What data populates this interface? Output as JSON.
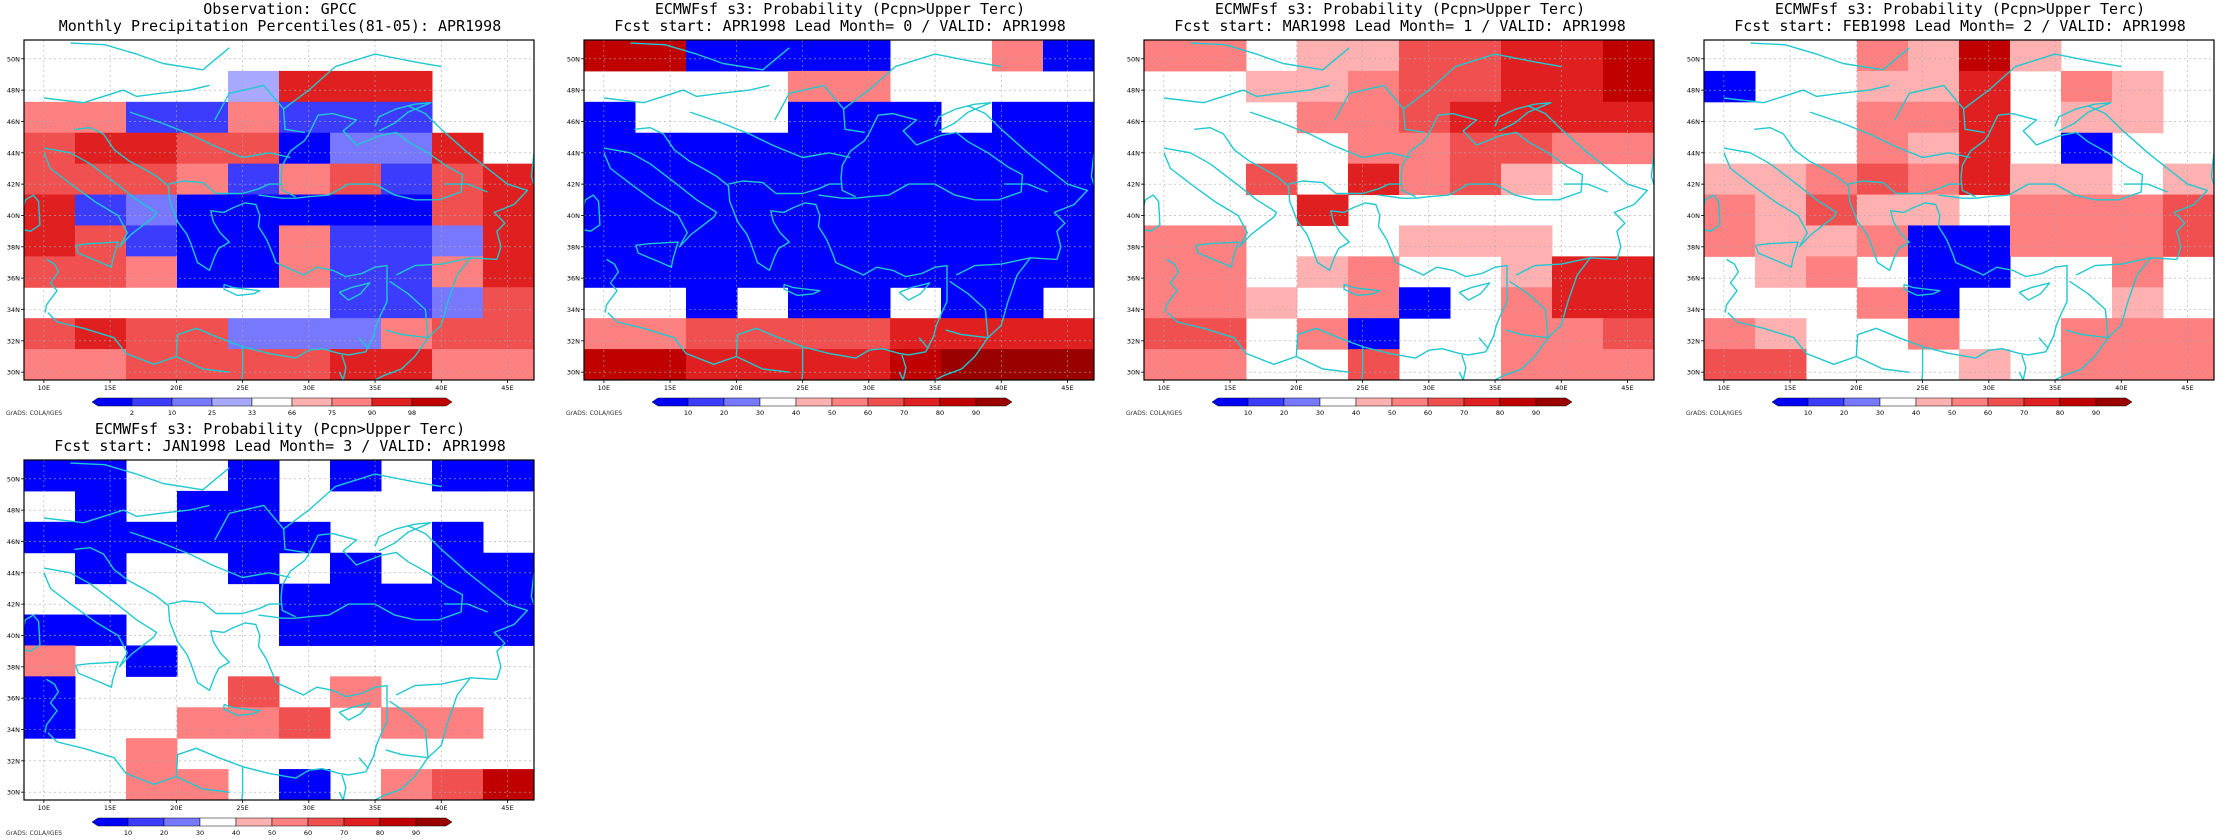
{
  "colors": {
    "blue_ramp": [
      "#0000ff",
      "#3c3cff",
      "#7878ff",
      "#a8a8ff"
    ],
    "red_ramp": [
      "#ffb0b0",
      "#ff8080",
      "#f05050",
      "#e02020",
      "#c00000",
      "#9b0000"
    ],
    "coast": "#20c8d0",
    "grid": "#aaaaaa"
  },
  "map_axes": {
    "lat_labels": [
      "30N",
      "32N",
      "34N",
      "36N",
      "38N",
      "40N",
      "42N",
      "44N",
      "46N",
      "48N",
      "50N"
    ],
    "lon_labels": [
      "10E",
      "15E",
      "20E",
      "25E",
      "30E",
      "35E",
      "40E",
      "45E"
    ],
    "credit": "GrADS: COLA/IGES"
  },
  "panels": [
    {
      "title_line1": "Observation: GPCC",
      "title_line2": "Monthly Precipitation Percentiles(81-05): APR1998",
      "colorbar_labels": [
        "2",
        "10",
        "25",
        "33",
        "66",
        "75",
        "90",
        "98"
      ],
      "colorbar_colors": [
        "#0000ff",
        "#3c3cff",
        "#7878ff",
        "#a8a8ff",
        "#ffffff",
        "#ffb0b0",
        "#ff8080",
        "#e02020",
        "#c00000"
      ],
      "grid_values": [
        "..........",
        "....dDDD..",
        "BBbbBbbb..",
        "CDDCCaccD.",
        "CCCBbBCbCD",
        "DbcaaaaaCD",
        "DCbaaBbbcD",
        "CCBaaBbbBD",
        "......bbcC",
        "CDCCcccBCC",
        "BBCCCCDDBB"
      ]
    },
    {
      "title_line1": "ECMWFsf s3: Probability (Pcpn>Upper Terc)",
      "title_line2": "Fcst start: APR1998  Lead Month= 0 / VALID: APR1998",
      "colorbar_labels": [
        "10",
        "20",
        "30",
        "40",
        "50",
        "60",
        "70",
        "80",
        "90"
      ],
      "colorbar_colors": [
        "#0000ff",
        "#3c3cff",
        "#7878ff",
        "#ffffff",
        "#ffb0b0",
        "#ff8080",
        "#f05050",
        "#e02020",
        "#c00000",
        "#9b0000"
      ],
      "grid_values": [
        "EEaaaa..Ba",
        "....BB....",
        "a...aaa.aa",
        "aaaaaaaaaa",
        "aaaaaaaaaa",
        "aaaaaaaaaa",
        "aaaaaaaaaa",
        "aaaaaaaaaa",
        "..a.aa.aa.",
        "BBCCCCDDDD",
        "EEDDDDEFFF"
      ]
    },
    {
      "title_line1": "ECMWFsf s3: Probability (Pcpn>Upper Terc)",
      "title_line2": "Fcst start: MAR1998  Lead Month= 1 / VALID: APR1998",
      "colorbar_labels": [
        "10",
        "20",
        "30",
        "40",
        "50",
        "60",
        "70",
        "80",
        "90"
      ],
      "colorbar_colors": [
        "#0000ff",
        "#3c3cff",
        "#7878ff",
        "#ffffff",
        "#ffb0b0",
        "#ff8080",
        "#f05050",
        "#e02020",
        "#c00000",
        "#9b0000"
      ],
      "grid_values": [
        "BB.AACCDDE",
        "..AABCCDDE",
        "...BBCDDDD",
        "....BBCCBB",
        "..C.DBCA..",
        "...D......",
        "BB...AAA..",
        "BB.AB..ADD",
        "BBA.Ba.BDD",
        "CC.Ba..BBC",
        "BB..C..BBB"
      ]
    },
    {
      "title_line1": "ECMWFsf s3: Probability (Pcpn>Upper Terc)",
      "title_line2": "Fcst start: FEB1998  Lead Month= 2 / VALID: APR1998",
      "colorbar_labels": [
        "10",
        "20",
        "30",
        "40",
        "50",
        "60",
        "70",
        "80",
        "90"
      ],
      "colorbar_colors": [
        "#0000ff",
        "#3c3cff",
        "#7878ff",
        "#ffffff",
        "#ffb0b0",
        "#ff8080",
        "#f05050",
        "#e02020",
        "#c00000",
        "#9b0000"
      ],
      "grid_values": [
        "...BAEA...",
        "a..AAD.BA.",
        "...BBD.AA.",
        "...BAD.a..",
        "AABCBDAA.A",
        "BACAA.BBBC",
        "BAABaaBBBC",
        ".AB.aa..B.",
        "...Ba...A.",
        "BA..B..BBB",
        "CC...A.BBB"
      ]
    },
    {
      "title_line1": "ECMWFsf s3: Probability (Pcpn>Upper Terc)",
      "title_line2": "Fcst start: JAN1998  Lead Month= 3 / VALID: APR1998",
      "colorbar_labels": [
        "10",
        "20",
        "30",
        "40",
        "50",
        "60",
        "70",
        "80",
        "90"
      ],
      "colorbar_colors": [
        "#0000ff",
        "#3c3cff",
        "#7878ff",
        "#ffffff",
        "#ffb0b0",
        "#ff8080",
        "#f05050",
        "#e02020",
        "#c00000",
        "#9b0000"
      ],
      "grid_values": [
        "aa..a.a.aa",
        ".a.aa.....",
        "aaaaaa..a.",
        ".a..a.a.aa",
        ".....aaaaa",
        "aa...aaaaa",
        "B.a.......",
        "a...C.B...",
        "a..BBC.BB.",
        "..B.......",
        "..BB.a.BCE"
      ]
    }
  ]
}
